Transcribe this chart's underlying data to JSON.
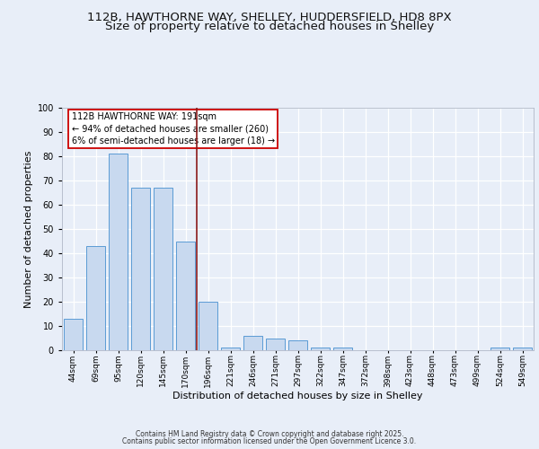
{
  "title_line1": "112B, HAWTHORNE WAY, SHELLEY, HUDDERSFIELD, HD8 8PX",
  "title_line2": "Size of property relative to detached houses in Shelley",
  "xlabel": "Distribution of detached houses by size in Shelley",
  "ylabel": "Number of detached properties",
  "categories": [
    "44sqm",
    "69sqm",
    "95sqm",
    "120sqm",
    "145sqm",
    "170sqm",
    "196sqm",
    "221sqm",
    "246sqm",
    "271sqm",
    "297sqm",
    "322sqm",
    "347sqm",
    "372sqm",
    "398sqm",
    "423sqm",
    "448sqm",
    "473sqm",
    "499sqm",
    "524sqm",
    "549sqm"
  ],
  "values": [
    13,
    43,
    81,
    67,
    67,
    45,
    20,
    1,
    6,
    5,
    4,
    1,
    1,
    0,
    0,
    0,
    0,
    0,
    0,
    1,
    1
  ],
  "bar_color": "#c8d9ef",
  "bar_edge_color": "#5b9bd5",
  "vline_x": 5.5,
  "vline_color": "#8b1a1a",
  "annotation_text": "112B HAWTHORNE WAY: 191sqm\n← 94% of detached houses are smaller (260)\n6% of semi-detached houses are larger (18) →",
  "annotation_box_color": "#ffffff",
  "annotation_box_edge": "#cc0000",
  "ylim": [
    0,
    100
  ],
  "yticks": [
    0,
    10,
    20,
    30,
    40,
    50,
    60,
    70,
    80,
    90,
    100
  ],
  "bg_color": "#e8eef8",
  "plot_bg_color": "#e8eef8",
  "footer_line1": "Contains HM Land Registry data © Crown copyright and database right 2025.",
  "footer_line2": "Contains public sector information licensed under the Open Government Licence 3.0.",
  "title_fontsize": 9.5,
  "tick_fontsize": 6.5,
  "label_fontsize": 8,
  "footer_fontsize": 5.5
}
